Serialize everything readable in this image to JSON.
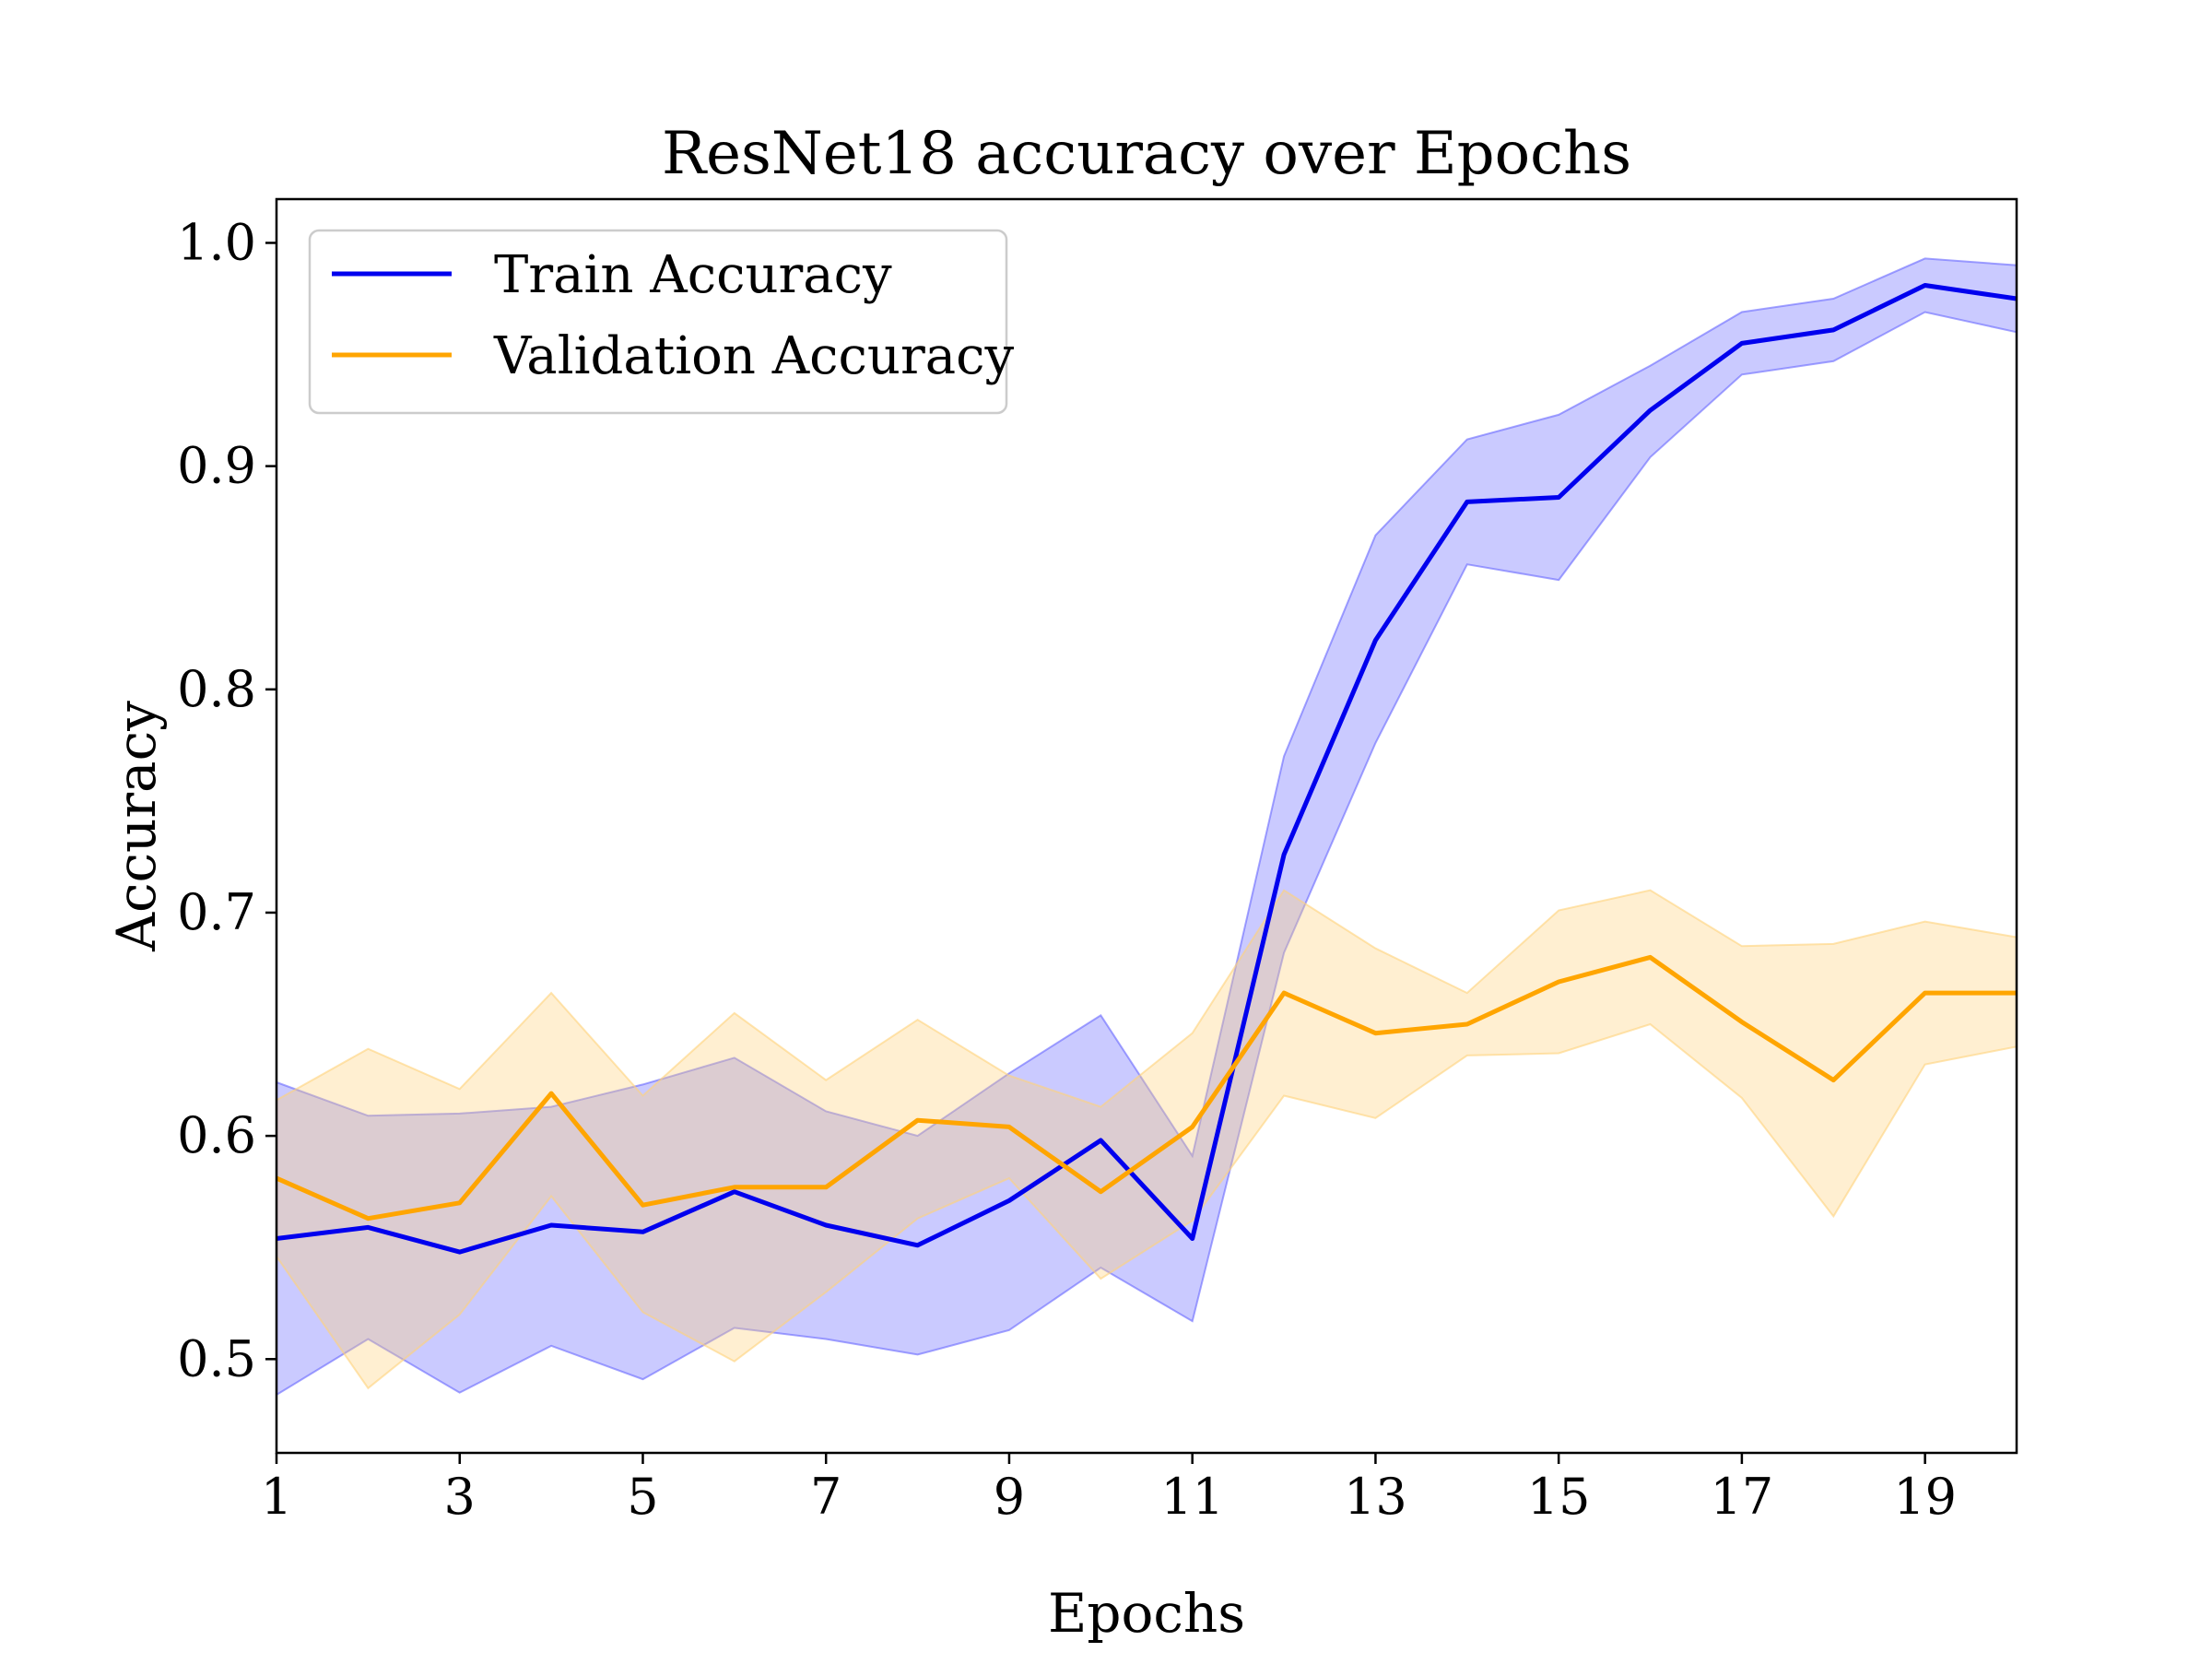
{
  "chart_data": {
    "type": "line",
    "title": "ResNet18 accuracy over Epochs",
    "xlabel": "Epochs",
    "ylabel": "Accuracy",
    "xlim": [
      1,
      20
    ],
    "ylim": [
      0.458,
      1.0196
    ],
    "xticks": [
      1,
      3,
      5,
      7,
      9,
      11,
      13,
      15,
      17,
      19
    ],
    "yticks": [
      0.5,
      0.6,
      0.7,
      0.8,
      0.9,
      1.0
    ],
    "xtick_labels": [
      "1",
      "3",
      "5",
      "7",
      "9",
      "11",
      "13",
      "15",
      "17",
      "19"
    ],
    "ytick_labels": [
      "0.5",
      "0.6",
      "0.7",
      "0.8",
      "0.9",
      "1.0"
    ],
    "grid": false,
    "legend_position": "top-left",
    "x": [
      1,
      2,
      3,
      4,
      5,
      6,
      7,
      8,
      9,
      10,
      11,
      12,
      13,
      14,
      15,
      16,
      17,
      18,
      19,
      20
    ],
    "series": [
      {
        "name": "Train Accuracy",
        "color": "#0000ee",
        "band_color": "#6666ff",
        "values": [
          0.554,
          0.559,
          0.548,
          0.56,
          0.557,
          0.575,
          0.56,
          0.551,
          0.571,
          0.598,
          0.554,
          0.726,
          0.822,
          0.884,
          0.886,
          0.925,
          0.955,
          0.961,
          0.981,
          0.975
        ],
        "lower": [
          0.484,
          0.509,
          0.485,
          0.506,
          0.491,
          0.514,
          0.509,
          0.502,
          0.513,
          0.541,
          0.517,
          0.682,
          0.776,
          0.856,
          0.849,
          0.904,
          0.941,
          0.947,
          0.969,
          0.96
        ],
        "upper": [
          0.624,
          0.609,
          0.61,
          0.613,
          0.623,
          0.635,
          0.611,
          0.6,
          0.628,
          0.654,
          0.591,
          0.77,
          0.869,
          0.912,
          0.923,
          0.945,
          0.969,
          0.975,
          0.993,
          0.99
        ]
      },
      {
        "name": "Validation Accuracy",
        "color": "#ffa500",
        "band_color": "#ffd27a",
        "values": [
          0.581,
          0.563,
          0.57,
          0.619,
          0.569,
          0.577,
          0.577,
          0.607,
          0.604,
          0.575,
          0.604,
          0.664,
          0.646,
          0.65,
          0.669,
          0.68,
          0.651,
          0.625,
          0.664,
          0.664
        ],
        "lower": [
          0.546,
          0.487,
          0.52,
          0.573,
          0.521,
          0.499,
          0.53,
          0.563,
          0.581,
          0.536,
          0.562,
          0.618,
          0.608,
          0.636,
          0.637,
          0.65,
          0.617,
          0.564,
          0.632,
          0.64
        ],
        "upper": [
          0.616,
          0.639,
          0.621,
          0.664,
          0.618,
          0.655,
          0.625,
          0.652,
          0.627,
          0.613,
          0.646,
          0.71,
          0.684,
          0.664,
          0.701,
          0.71,
          0.685,
          0.686,
          0.696,
          0.689
        ]
      }
    ]
  }
}
